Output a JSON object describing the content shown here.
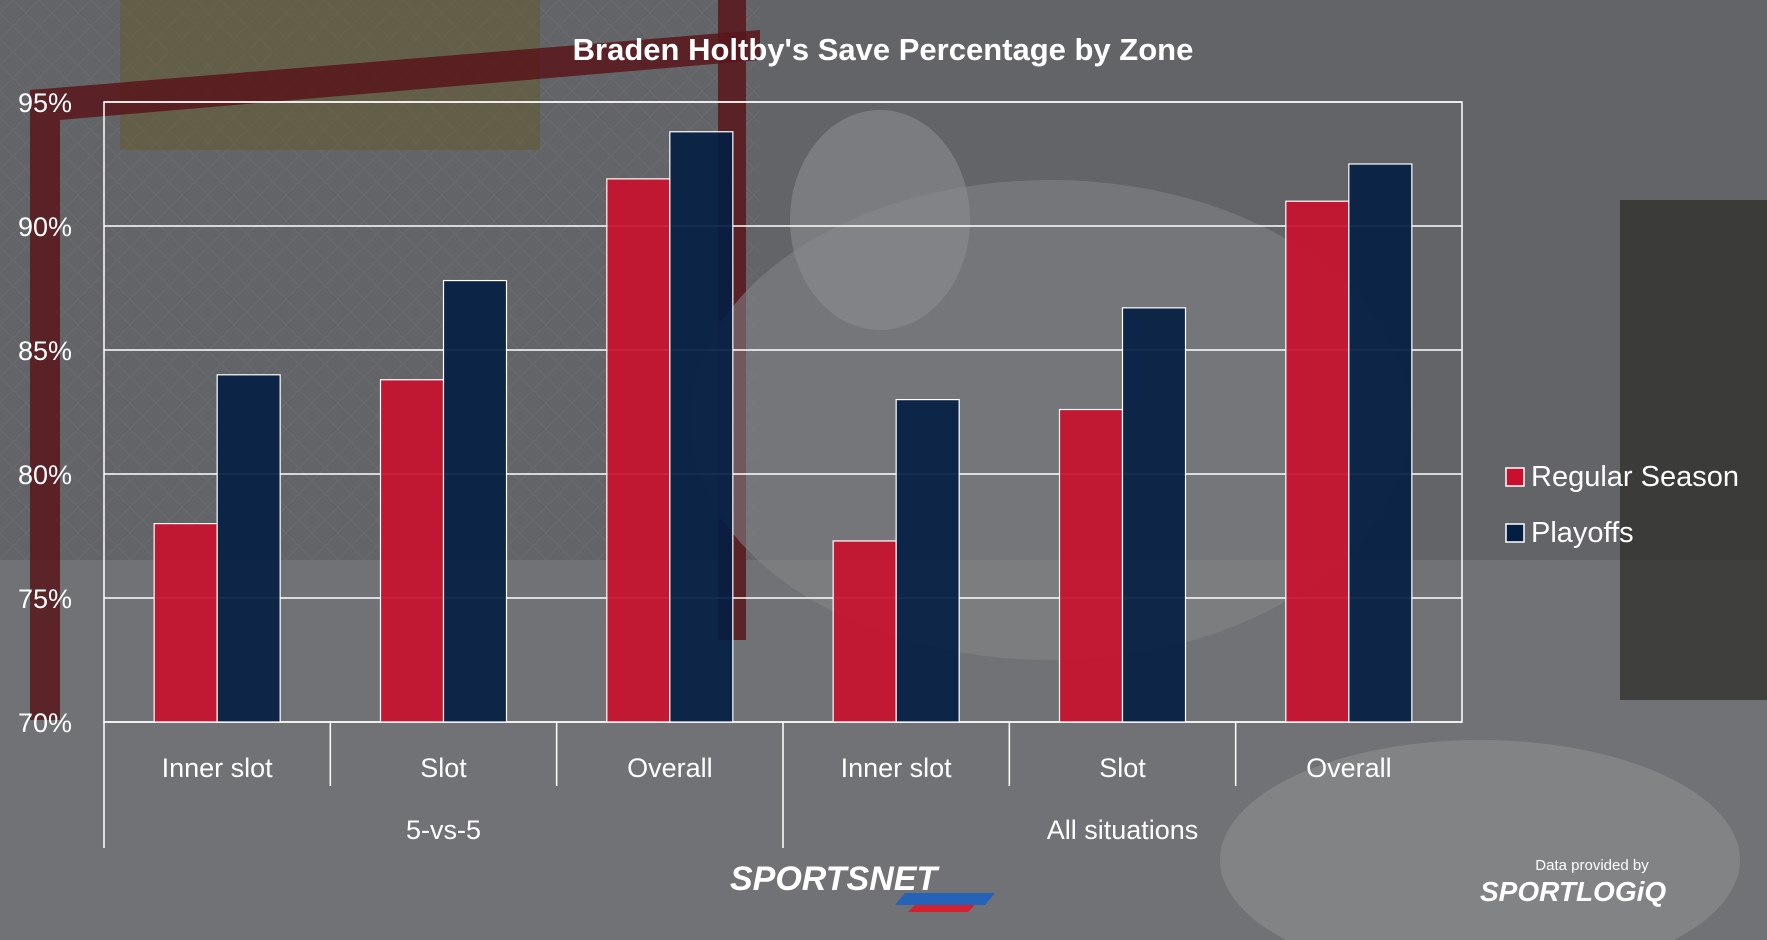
{
  "chart_data": {
    "type": "bar",
    "title": "Braden Holtby's Save Percentage by Zone",
    "xlabel": "",
    "ylabel": "",
    "ylim": [
      70,
      95
    ],
    "yticks": [
      "70%",
      "75%",
      "80%",
      "85%",
      "90%",
      "95%"
    ],
    "grid": true,
    "legend_position": "right",
    "groups": [
      {
        "label": "5-vs-5",
        "categories": [
          "Inner slot",
          "Slot",
          "Overall"
        ]
      },
      {
        "label": "All situations",
        "categories": [
          "Inner slot",
          "Slot",
          "Overall"
        ]
      }
    ],
    "categories": [
      "Inner slot",
      "Slot",
      "Overall",
      "Inner slot",
      "Slot",
      "Overall"
    ],
    "series": [
      {
        "name": "Regular Season",
        "color": "#c8102e",
        "values": [
          78.0,
          83.8,
          91.9,
          77.3,
          82.6,
          91.0
        ]
      },
      {
        "name": "Playoffs",
        "color": "#041e42",
        "values": [
          84.0,
          87.8,
          93.8,
          83.0,
          86.7,
          92.5
        ]
      }
    ]
  },
  "branding": {
    "sportsnet_logo": "SPORTSNET",
    "data_credit": "Data provided by",
    "sportlogiq_logo": "SPORTLOGiQ"
  }
}
